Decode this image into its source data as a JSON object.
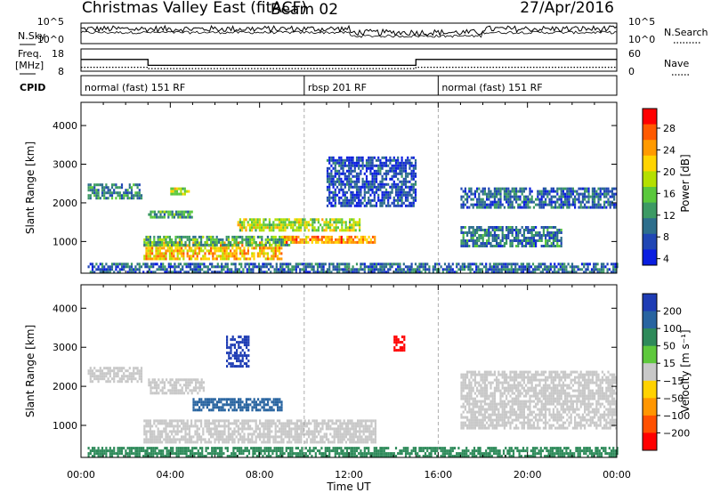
{
  "header": {
    "title": "Christmas Valley East (fitACF)",
    "beam": "Beam 02",
    "date": "27/Apr/2016"
  },
  "strips": {
    "noise_left_label": "N.Sky",
    "noise_left_ticks": [
      "10^5",
      "10^0"
    ],
    "noise_right_ticks": [
      "10^5",
      "10^0"
    ],
    "noise_right_label": "N.Search",
    "freq_label_1": "Freq.",
    "freq_label_2": "[MHz]",
    "freq_ticks": [
      "18",
      "8"
    ],
    "nave_ticks": [
      "60",
      "0"
    ],
    "nave_label": "Nave",
    "cpid_label": "CPID",
    "cpid_segments": [
      {
        "label": "normal (fast) 151 RF",
        "start_hour": 0,
        "end_hour": 10
      },
      {
        "label": "rbsp 201 RF",
        "start_hour": 10,
        "end_hour": 16
      },
      {
        "label": "normal (fast) 151 RF",
        "start_hour": 16,
        "end_hour": 24
      }
    ],
    "freq_trace_mhz": [
      [
        0,
        14
      ],
      [
        3,
        14
      ],
      [
        3,
        11
      ],
      [
        15,
        11
      ],
      [
        15,
        14
      ],
      [
        24,
        14
      ]
    ],
    "nave_trace": [
      [
        0,
        12
      ],
      [
        3,
        12
      ],
      [
        3,
        8
      ],
      [
        15,
        8
      ],
      [
        15,
        12
      ],
      [
        24,
        12
      ]
    ]
  },
  "chart_data": [
    {
      "type": "heatmap",
      "title": "Power",
      "ylabel": "Slant Range [km]",
      "xlabel": "Time UT",
      "xlim": [
        0,
        24
      ],
      "ylim": [
        180,
        4600
      ],
      "x_ticks": [
        "00:00",
        "04:00",
        "08:00",
        "12:00",
        "16:00",
        "20:00",
        "00:00"
      ],
      "y_ticks": [
        1000,
        2000,
        3000,
        4000
      ],
      "colorbar": {
        "label": "Power [dB]",
        "ticks": [
          "28",
          "24",
          "20",
          "16",
          "12",
          "8",
          "4"
        ],
        "colors": [
          "#ff0000",
          "#ff5a00",
          "#ff9a00",
          "#ffd400",
          "#b4e000",
          "#5ac83c",
          "#3c9a64",
          "#2d6e8c",
          "#2046b4",
          "#0a1ee0"
        ]
      },
      "regions": [
        {
          "x": [
            0.3,
            2.7
          ],
          "y": [
            2100,
            2500
          ],
          "value": 10
        },
        {
          "x": [
            2.8,
            9.0
          ],
          "y": [
            520,
            1000
          ],
          "value": 22
        },
        {
          "x": [
            2.8,
            9.5
          ],
          "y": [
            900,
            1150
          ],
          "value": 13
        },
        {
          "x": [
            9.0,
            13.2
          ],
          "y": [
            1000,
            1150
          ],
          "value": 24
        },
        {
          "x": [
            3.0,
            5.0
          ],
          "y": [
            1600,
            1800
          ],
          "value": 12
        },
        {
          "x": [
            4.0,
            4.8
          ],
          "y": [
            2200,
            2400
          ],
          "value": 18
        },
        {
          "x": [
            7.0,
            12.5
          ],
          "y": [
            1300,
            1600
          ],
          "value": 18
        },
        {
          "x": [
            11.0,
            15.0
          ],
          "y": [
            1900,
            3200
          ],
          "value": 6
        },
        {
          "x": [
            17.0,
            21.5
          ],
          "y": [
            900,
            1400
          ],
          "value": 9
        },
        {
          "x": [
            17.0,
            24.0
          ],
          "y": [
            1900,
            2400
          ],
          "value": 8
        },
        {
          "x": [
            0.3,
            24.0
          ],
          "y": [
            180,
            450
          ],
          "value": 8
        }
      ]
    },
    {
      "type": "heatmap",
      "title": "Velocity",
      "ylabel": "Slant Range [km]",
      "xlabel": "Time UT",
      "xlim": [
        0,
        24
      ],
      "ylim": [
        180,
        4600
      ],
      "x_ticks": [
        "00:00",
        "04:00",
        "08:00",
        "12:00",
        "16:00",
        "20:00",
        "00:00"
      ],
      "y_ticks": [
        1000,
        2000,
        3000,
        4000
      ],
      "colorbar": {
        "label": "Velocity [m s⁻¹]",
        "ticks": [
          "200",
          "100",
          "50",
          "15",
          "−15",
          "−50",
          "−100",
          "−200"
        ],
        "colors": [
          "#1e3cb4",
          "#2864a0",
          "#2e8a5a",
          "#5ec83c",
          "#c8c8c8",
          "#ffd200",
          "#ff9600",
          "#ff5000",
          "#ff0000"
        ]
      },
      "regions": [
        {
          "x": [
            0.3,
            2.7
          ],
          "y": [
            2100,
            2500
          ],
          "value": 0
        },
        {
          "x": [
            2.8,
            13.2
          ],
          "y": [
            550,
            1150
          ],
          "value": 5
        },
        {
          "x": [
            3.0,
            5.5
          ],
          "y": [
            1800,
            2200
          ],
          "value": 0
        },
        {
          "x": [
            5.0,
            9.0
          ],
          "y": [
            1400,
            1700
          ],
          "value": 120
        },
        {
          "x": [
            6.5,
            7.5
          ],
          "y": [
            2500,
            3300
          ],
          "value": 200
        },
        {
          "x": [
            14.0,
            14.5
          ],
          "y": [
            2900,
            3300
          ],
          "value": -200
        },
        {
          "x": [
            17.0,
            24.0
          ],
          "y": [
            900,
            2400
          ],
          "value": 0
        },
        {
          "x": [
            0.3,
            24.0
          ],
          "y": [
            180,
            450
          ],
          "value": 40
        }
      ]
    }
  ]
}
